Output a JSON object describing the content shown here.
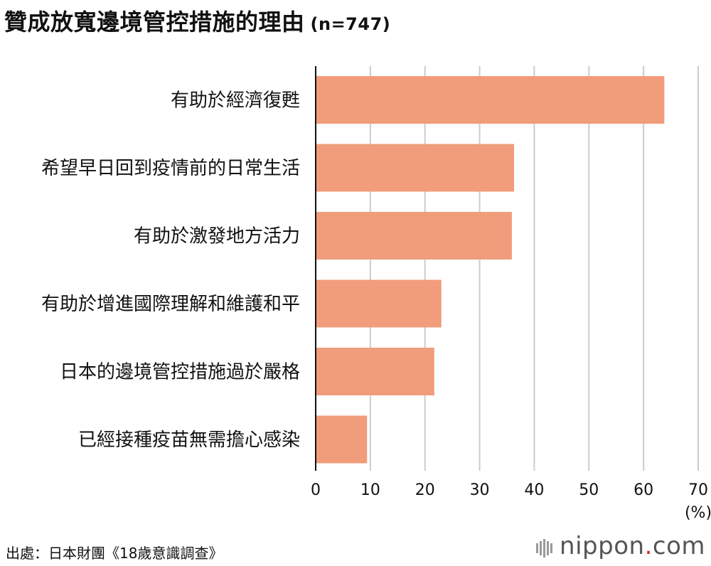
{
  "header": {
    "title": "贊成放寬邊境管控措施的理由",
    "sample": "(n=747)"
  },
  "footer": {
    "source": "出處：日本財團《18歲意識調查》",
    "logo_main": "nippon",
    "logo_dot": ".",
    "logo_com": "com"
  },
  "colors": {
    "bar": "#f19c7b",
    "grid": "#cccccc",
    "axis": "#111111",
    "logo_dot": "#d7281e"
  },
  "chart_data": {
    "type": "bar",
    "orientation": "horizontal",
    "categories": [
      "有助於經濟復甦",
      "希望早日回到疫情前的日常生活",
      "有助於激發地方活力",
      "有助於增進國際理解和維護和平",
      "日本的邊境管控措施過於嚴格",
      "已經接種疫苗無需擔心感染"
    ],
    "values": [
      63.8,
      36.3,
      35.9,
      23.0,
      21.7,
      9.4
    ],
    "xlim": [
      0,
      70
    ],
    "xticks": [
      "0",
      "10",
      "20",
      "30",
      "40",
      "50",
      "60",
      "70"
    ],
    "xunit": "(%)",
    "grid": true,
    "legend": "none"
  }
}
